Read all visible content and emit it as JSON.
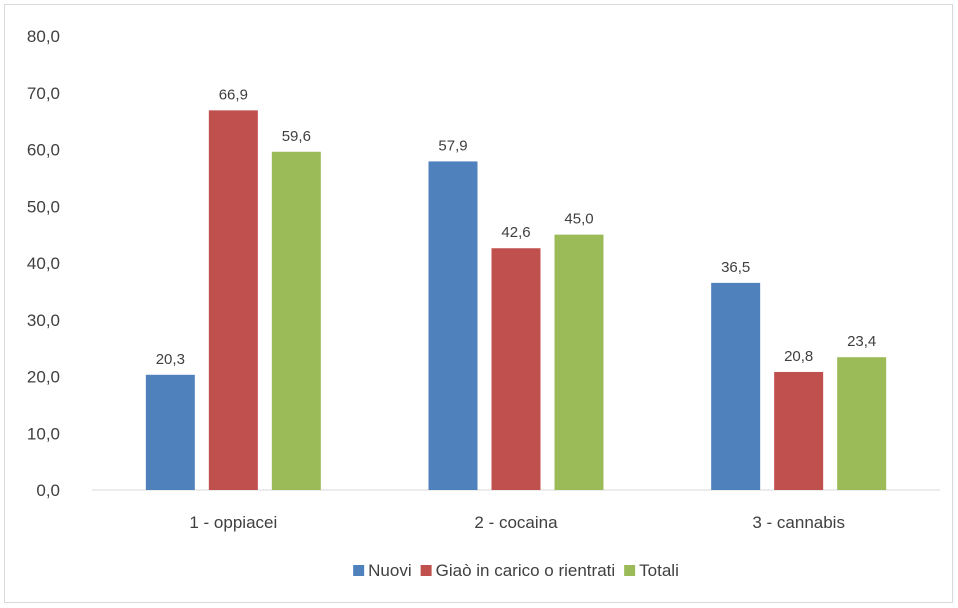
{
  "chart_data": {
    "type": "bar",
    "categories": [
      "1 - oppiacei",
      "2 - cocaina",
      "3 - cannabis"
    ],
    "series": [
      {
        "name": "Nuovi",
        "values": [
          20.3,
          57.9,
          36.5
        ],
        "color": "#4f81bd"
      },
      {
        "name": "Giaò in carico o rientrati",
        "values": [
          66.9,
          42.6,
          20.8
        ],
        "color": "#c0504d"
      },
      {
        "name": "Totali",
        "values": [
          59.6,
          45.0,
          23.4
        ],
        "color": "#9bbb59"
      }
    ],
    "data_labels": [
      [
        "20,3",
        "57,9",
        "36,5"
      ],
      [
        "66,9",
        "42,6",
        "20,8"
      ],
      [
        "59,6",
        "45,0",
        "23,4"
      ]
    ],
    "yticks": [
      "0,0",
      "10,0",
      "20,0",
      "30,0",
      "40,0",
      "50,0",
      "60,0",
      "70,0",
      "80,0"
    ],
    "ylim": [
      0,
      80
    ],
    "grid": false,
    "legend_position": "bottom",
    "title": "",
    "xlabel": "",
    "ylabel": ""
  }
}
